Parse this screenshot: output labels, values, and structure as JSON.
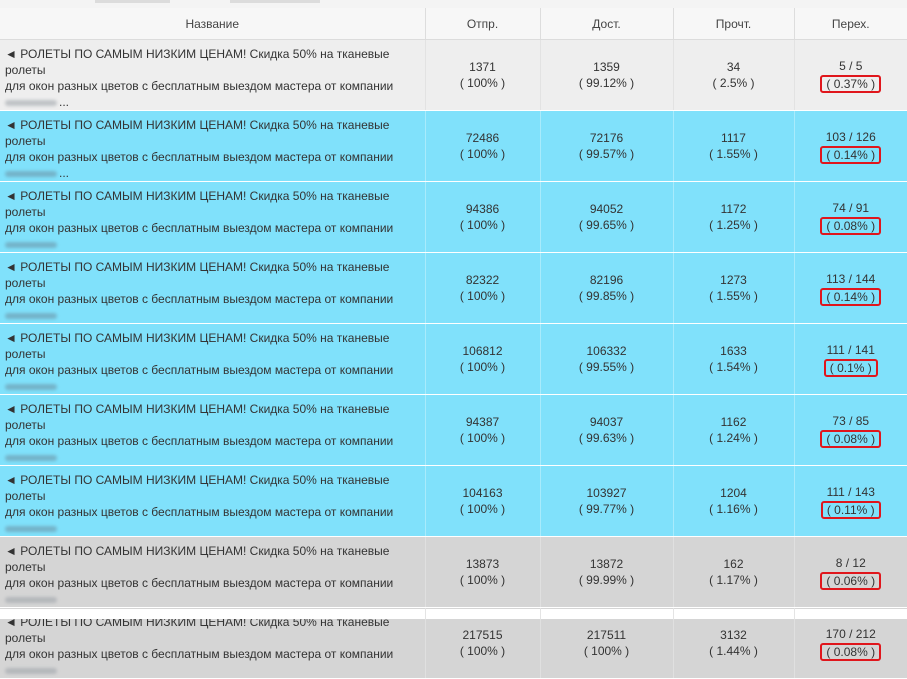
{
  "columns": {
    "name": "Название",
    "sent": "Отпр.",
    "delivered": "Дост.",
    "read": "Прочт.",
    "clicks": "Перех."
  },
  "rows": [
    {
      "style": "light",
      "name_line1": "◄ РОЛЕТЫ ПО САМЫМ НИЗКИМ ЦЕНАМ! Скидка 50% на тканевые ролеты",
      "name_line2": "для окон разных цветов с бесплатным выездом мастера от компании",
      "name_tail": "...",
      "sent": "1371",
      "sent_pct": "( 100% )",
      "delivered": "1359",
      "delivered_pct": "( 99.12% )",
      "read": "34",
      "read_pct": "( 2.5% )",
      "clicks": "5 / 5",
      "clicks_pct": "( 0.37% )"
    },
    {
      "style": "cyan",
      "name_line1": "◄ РОЛЕТЫ ПО САМЫМ НИЗКИМ ЦЕНАМ! Скидка 50% на тканевые ролеты",
      "name_line2": "для окон разных цветов с бесплатным выездом мастера от компании",
      "name_tail": "...",
      "sent": "72486",
      "sent_pct": "( 100% )",
      "delivered": "72176",
      "delivered_pct": "( 99.57% )",
      "read": "1117",
      "read_pct": "( 1.55% )",
      "clicks": "103 / 126",
      "clicks_pct": "( 0.14% )"
    },
    {
      "style": "cyan",
      "name_line1": "◄ РОЛЕТЫ ПО САМЫМ НИЗКИМ ЦЕНАМ! Скидка 50% на тканевые ролеты",
      "name_line2": "для окон разных цветов с бесплатным выездом мастера от компании",
      "name_tail": "",
      "sent": "94386",
      "sent_pct": "( 100% )",
      "delivered": "94052",
      "delivered_pct": "( 99.65% )",
      "read": "1172",
      "read_pct": "( 1.25% )",
      "clicks": "74 / 91",
      "clicks_pct": "( 0.08% )"
    },
    {
      "style": "cyan",
      "name_line1": "◄ РОЛЕТЫ ПО САМЫМ НИЗКИМ ЦЕНАМ! Скидка 50% на тканевые ролеты",
      "name_line2": "для окон разных цветов с бесплатным выездом мастера от компании",
      "name_tail": "",
      "sent": "82322",
      "sent_pct": "( 100% )",
      "delivered": "82196",
      "delivered_pct": "( 99.85% )",
      "read": "1273",
      "read_pct": "( 1.55% )",
      "clicks": "113 / 144",
      "clicks_pct": "( 0.14% )"
    },
    {
      "style": "cyan",
      "name_line1": "◄ РОЛЕТЫ ПО САМЫМ НИЗКИМ ЦЕНАМ! Скидка 50% на тканевые ролеты",
      "name_line2": "для окон разных цветов с бесплатным выездом мастера от компании",
      "name_tail": "",
      "sent": "106812",
      "sent_pct": "( 100% )",
      "delivered": "106332",
      "delivered_pct": "( 99.55% )",
      "read": "1633",
      "read_pct": "( 1.54% )",
      "clicks": "111 / 141",
      "clicks_pct": "( 0.1% )"
    },
    {
      "style": "cyan",
      "name_line1": "◄ РОЛЕТЫ ПО САМЫМ НИЗКИМ ЦЕНАМ! Скидка 50% на тканевые ролеты",
      "name_line2": "для окон разных цветов с бесплатным выездом мастера от компании",
      "name_tail": "",
      "sent": "94387",
      "sent_pct": "( 100% )",
      "delivered": "94037",
      "delivered_pct": "( 99.63% )",
      "read": "1162",
      "read_pct": "( 1.24% )",
      "clicks": "73 / 85",
      "clicks_pct": "( 0.08% )"
    },
    {
      "style": "cyan",
      "name_line1": "◄ РОЛЕТЫ ПО САМЫМ НИЗКИМ ЦЕНАМ! Скидка 50% на тканевые ролеты",
      "name_line2": "для окон разных цветов с бесплатным выездом мастера от компании",
      "name_tail": "",
      "sent": "104163",
      "sent_pct": "( 100% )",
      "delivered": "103927",
      "delivered_pct": "( 99.77% )",
      "read": "1204",
      "read_pct": "( 1.16% )",
      "clicks": "111 / 143",
      "clicks_pct": "( 0.11% )"
    },
    {
      "style": "gray",
      "name_line1": "◄ РОЛЕТЫ ПО САМЫМ НИЗКИМ ЦЕНАМ! Скидка 50% на тканевые ролеты",
      "name_line2": "для окон разных цветов с бесплатным выездом мастера от компании",
      "name_tail": "",
      "sent": "13873",
      "sent_pct": "( 100% )",
      "delivered": "13872",
      "delivered_pct": "( 99.99% )",
      "read": "162",
      "read_pct": "( 1.17% )",
      "clicks": "8 / 12",
      "clicks_pct": "( 0.06% )"
    },
    {
      "style": "gray",
      "name_line1": "◄ РОЛЕТЫ ПО САМЫМ НИЗКИМ ЦЕНАМ! Скидка 50% на тканевые ролеты",
      "name_line2": "для окон разных цветов с бесплатным выездом мастера от компании",
      "name_tail": "",
      "sent": "217515",
      "sent_pct": "( 100% )",
      "delivered": "217511",
      "delivered_pct": "( 100% )",
      "read": "3132",
      "read_pct": "( 1.44% )",
      "clicks": "170 / 212",
      "clicks_pct": "( 0.08% )"
    }
  ],
  "colors": {
    "row_light": "#eeeeee",
    "row_cyan": "#80e1fb",
    "row_gray": "#d5d5d5",
    "highlight_box": "#e0161c"
  }
}
